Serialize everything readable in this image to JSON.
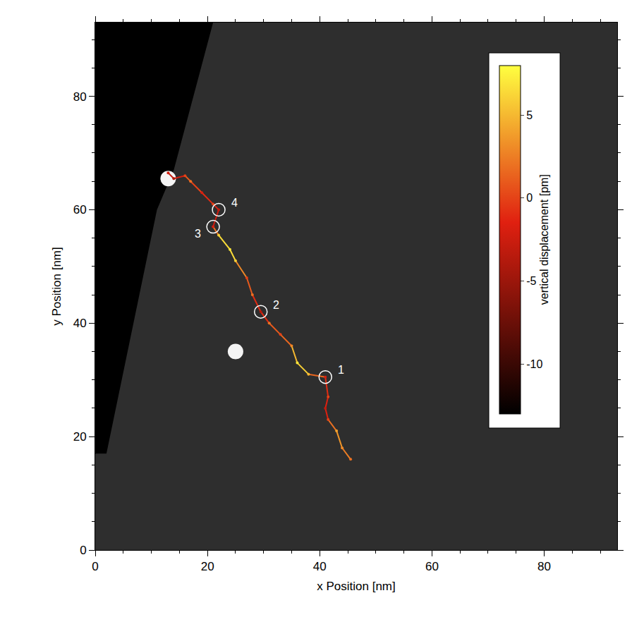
{
  "chart_data": {
    "type": "trajectory",
    "x_label": "x Position [nm]",
    "y_label": "y Position [nm]",
    "xlim": [
      0,
      93
    ],
    "ylim": [
      0,
      93
    ],
    "xticks": [
      0,
      20,
      40,
      60,
      80
    ],
    "yticks": [
      0,
      20,
      40,
      60,
      80
    ],
    "grid": false,
    "x": [
      45.5,
      44,
      43,
      41.5,
      41,
      41.5,
      41,
      38,
      36,
      35,
      33,
      31,
      29.5,
      28,
      27,
      25,
      24,
      22,
      21,
      22,
      21,
      19,
      17,
      16,
      14,
      13
    ],
    "y": [
      16,
      18,
      21,
      23,
      25,
      27,
      30.5,
      31,
      33,
      36,
      38,
      40,
      42,
      45,
      48,
      51,
      53,
      55.5,
      57,
      60,
      61,
      63,
      65,
      66,
      65.5,
      66.5
    ],
    "vertical_displacement": [
      2,
      3,
      4,
      0,
      -3,
      0,
      -2,
      5,
      7,
      3,
      0,
      2,
      -4,
      2,
      0,
      6,
      7,
      6,
      -2,
      -3,
      0,
      -2,
      2,
      0,
      -4,
      -2
    ],
    "colorbar": {
      "title": "vertical displacement [pm]",
      "range": [
        -13,
        8
      ],
      "ticks": [
        -10,
        -5,
        0,
        5
      ]
    },
    "markers": [
      {
        "label": "1",
        "x": 41,
        "y": 30.5
      },
      {
        "label": "2",
        "x": 29.5,
        "y": 42
      },
      {
        "label": "3",
        "x": 21,
        "y": 57
      },
      {
        "label": "4",
        "x": 22,
        "y": 60
      }
    ],
    "dark_region": {
      "x": [
        0,
        21,
        14,
        11,
        2,
        0
      ],
      "y": [
        93,
        93,
        67,
        60,
        17,
        17
      ]
    },
    "features": [
      {
        "x": 13,
        "y": 65.5
      },
      {
        "x": 25,
        "y": 35
      }
    ]
  }
}
